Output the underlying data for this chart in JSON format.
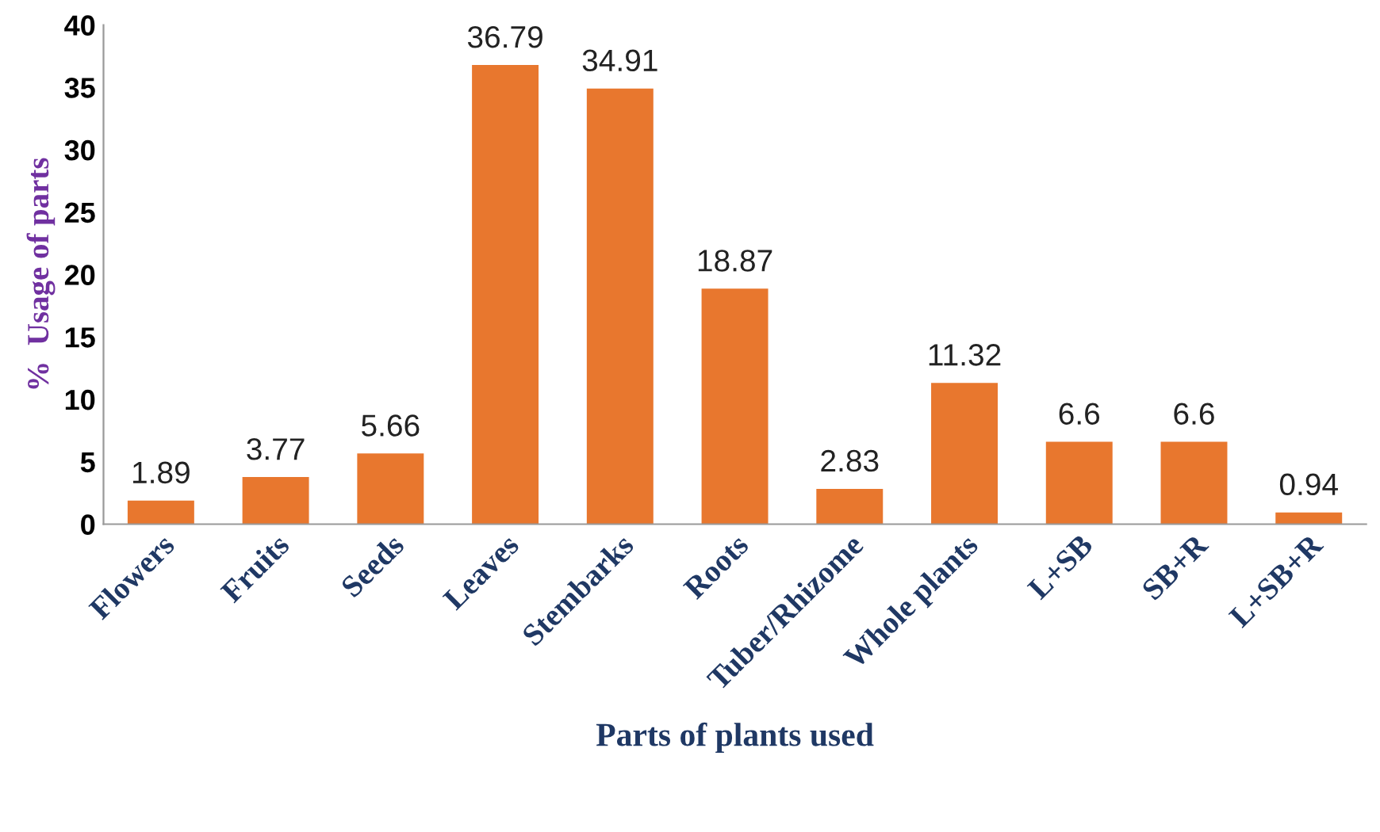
{
  "chart_data": {
    "type": "bar",
    "xlabel": "Parts of plants used",
    "ylabel": "%  Usage of parts",
    "categories": [
      "Flowers",
      "Fruits",
      "Seeds",
      "Leaves",
      "Stembarks",
      "Roots",
      "Tuber/Rhizome",
      "Whole plants",
      "L+SB",
      "SB+R",
      "L+SB+R"
    ],
    "values": [
      1.89,
      3.77,
      5.66,
      36.79,
      34.91,
      18.87,
      2.83,
      11.32,
      6.6,
      6.6,
      0.94
    ],
    "color": "#e8772e",
    "ylim": [
      0,
      40
    ],
    "yticks": [
      0,
      5,
      10,
      15,
      20,
      25,
      30,
      35,
      40
    ],
    "grid": false,
    "data_labels": true,
    "legend": false
  }
}
